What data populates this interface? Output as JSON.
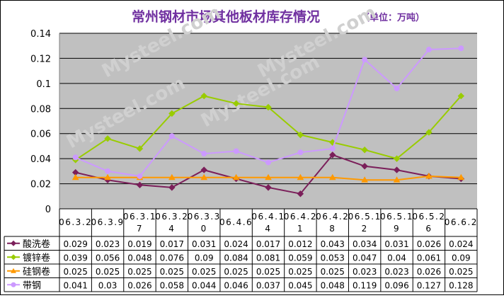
{
  "chart_data": {
    "type": "line",
    "title": "常州钢材市场其他板材库存情况",
    "unit": "（单位：万吨）",
    "watermark": "Mysteel.com",
    "ylim": [
      0,
      0.14
    ],
    "yticks": [
      "0",
      "0.02",
      "0.04",
      "0.06",
      "0.08",
      "0.1",
      "0.12",
      "0.14"
    ],
    "grid": true,
    "categories": [
      [
        "06.3.2"
      ],
      [
        "06.3.9"
      ],
      [
        "06.3.1",
        "7"
      ],
      [
        "06.3.2",
        "4"
      ],
      [
        "06.3.3",
        "0"
      ],
      [
        "06.4.6"
      ],
      [
        "06.4.1",
        "4"
      ],
      [
        "06.4.2",
        "1"
      ],
      [
        "06.4.2",
        "8"
      ],
      [
        "06.5.1",
        "2"
      ],
      [
        "06.5.1",
        "9"
      ],
      [
        "06.5.2",
        "6"
      ],
      [
        "06.6.2"
      ]
    ],
    "series": [
      {
        "name": "酸洗卷",
        "color": "#7b1f5a",
        "marker": "diamond",
        "labels": [
          "0.029",
          "0.023",
          "0.019",
          "0.017",
          "0.031",
          "0.024",
          "0.017",
          "0.012",
          "0.043",
          "0.034",
          "0.031",
          "0.026",
          "0.024"
        ],
        "values": [
          0.029,
          0.023,
          0.019,
          0.017,
          0.031,
          0.024,
          0.017,
          0.012,
          0.043,
          0.034,
          0.031,
          0.026,
          0.024
        ]
      },
      {
        "name": "镀锌卷",
        "color": "#99cc00",
        "marker": "diamond",
        "labels": [
          "0.039",
          "0.056",
          "0.048",
          "0.076",
          "0.09",
          "0.084",
          "0.081",
          "0.059",
          "0.053",
          "0.047",
          "0.04",
          "0.061",
          "0.09"
        ],
        "values": [
          0.039,
          0.056,
          0.048,
          0.076,
          0.09,
          0.084,
          0.081,
          0.059,
          0.053,
          0.047,
          0.04,
          0.061,
          0.09
        ]
      },
      {
        "name": "硅钢卷",
        "color": "#ff9900",
        "marker": "triangle",
        "labels": [
          "0.025",
          "0.025",
          "0.025",
          "0.025",
          "0.025",
          "0.025",
          "0.025",
          "0.025",
          "0.025",
          "0.023",
          "0.023",
          "0.026",
          "0.025"
        ],
        "values": [
          0.025,
          0.025,
          0.025,
          0.025,
          0.025,
          0.025,
          0.025,
          0.025,
          0.025,
          0.023,
          0.023,
          0.026,
          0.025
        ]
      },
      {
        "name": "带钢",
        "color": "#cc99ff",
        "marker": "circle",
        "labels": [
          "0.041",
          "0.03",
          "0.026",
          "0.058",
          "0.044",
          "0.046",
          "0.037",
          "0.045",
          "0.048",
          "0.119",
          "0.096",
          "0.127",
          "0.128"
        ],
        "values": [
          0.041,
          0.03,
          0.026,
          0.058,
          0.044,
          0.046,
          0.037,
          0.045,
          0.048,
          0.119,
          0.096,
          0.127,
          0.128
        ]
      }
    ]
  }
}
